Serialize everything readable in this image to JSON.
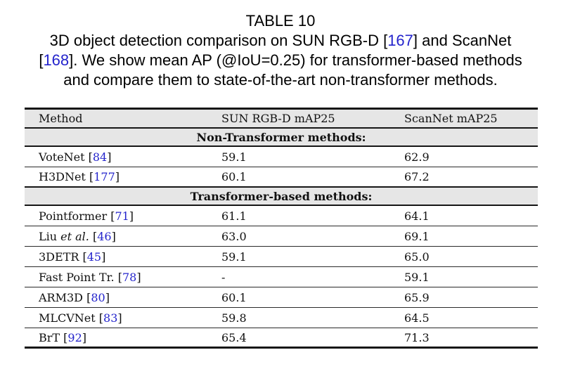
{
  "colors": {
    "citation_blue": "#2424cc",
    "section_row_bg": "#e6e6e6",
    "header_row_bg": "#e6e6e6",
    "rule": "#161616",
    "text": "#111111",
    "page_bg": "#ffffff"
  },
  "punct": {
    "open": "[",
    "close": "]"
  },
  "caption": {
    "label": "TABLE 10",
    "line2": {
      "pre": "3D object detection comparison on SUN RGB-D [",
      "cite": "167",
      "post": "] and ScanNet"
    },
    "line3": {
      "pre": "[",
      "cite": "168",
      "post": "]. We show mean AP (@IoU=0.25) for transformer-based methods"
    },
    "line4": "and compare them to state-of-the-art non-transformer methods."
  },
  "table": {
    "headers": [
      "Method",
      "SUN RGB-D mAP25",
      "ScanNet mAP25"
    ],
    "sections": [
      "Non-Transformer methods:",
      "Transformer-based methods:"
    ],
    "rows": [
      {
        "name": "VoteNet ",
        "name_it": "",
        "cite": "84",
        "sun": "59.1",
        "scan": "62.9",
        "section": "Non-Transformer methods:"
      },
      {
        "name": "H3DNet ",
        "name_it": "",
        "cite": "177",
        "sun": "60.1",
        "scan": "67.2",
        "section": "Non-Transformer methods:"
      },
      {
        "name": "Pointformer ",
        "name_it": "",
        "cite": "71",
        "sun": "61.1",
        "scan": "64.1",
        "section": "Transformer-based methods:"
      },
      {
        "name": "Liu ",
        "name_it": "et al. ",
        "cite": "46",
        "sun": "63.0",
        "scan": "69.1",
        "section": "Transformer-based methods:"
      },
      {
        "name": "3DETR ",
        "name_it": "",
        "cite": "45",
        "sun": "59.1",
        "scan": "65.0",
        "section": "Transformer-based methods:"
      },
      {
        "name": "Fast Point Tr. ",
        "name_it": "",
        "cite": "78",
        "sun": "-",
        "scan": "59.1",
        "section": "Transformer-based methods:"
      },
      {
        "name": "ARM3D ",
        "name_it": "",
        "cite": "80",
        "sun": "60.1",
        "scan": "65.9",
        "section": "Transformer-based methods:"
      },
      {
        "name": "MLCVNet ",
        "name_it": "",
        "cite": "83",
        "sun": "59.8",
        "scan": "64.5",
        "section": "Transformer-based methods:"
      },
      {
        "name": "BrT ",
        "name_it": "",
        "cite": "92",
        "sun": "65.4",
        "scan": "71.3",
        "section": "Transformer-based methods:"
      }
    ]
  }
}
